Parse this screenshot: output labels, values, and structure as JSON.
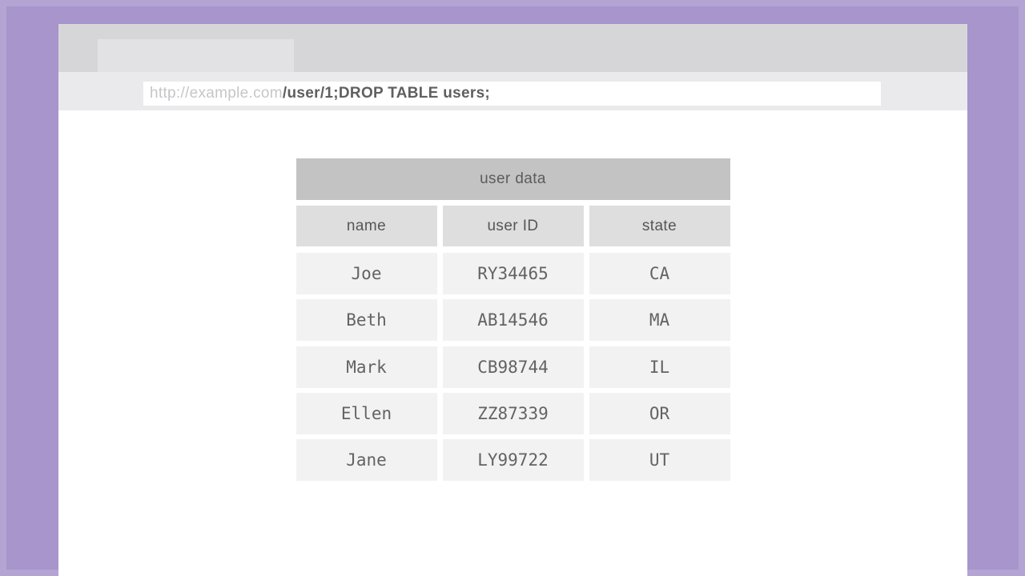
{
  "frame": {
    "background_color": "#a795cc",
    "edge_highlight_color": "rgba(255,255,255,0.14)"
  },
  "browser": {
    "chrome_color": "#d6d6d8",
    "tab_color": "#e2e2e4",
    "address_row_color": "#eaeaec",
    "url": {
      "domain": "http://example.com",
      "path": "/user/1;DROP TABLE users;"
    }
  },
  "table": {
    "title": "user data",
    "title_bg": "#c3c3c4",
    "header_bg": "#dedede",
    "cell_bg": "#f2f2f2",
    "columns": [
      "name",
      "user ID",
      "state"
    ],
    "rows": [
      [
        "Joe",
        "RY34465",
        "CA"
      ],
      [
        "Beth",
        "AB14546",
        "MA"
      ],
      [
        "Mark",
        "CB98744",
        "IL"
      ],
      [
        "Ellen",
        "ZZ87339",
        "OR"
      ],
      [
        "Jane",
        "LY99722",
        "UT"
      ]
    ]
  }
}
